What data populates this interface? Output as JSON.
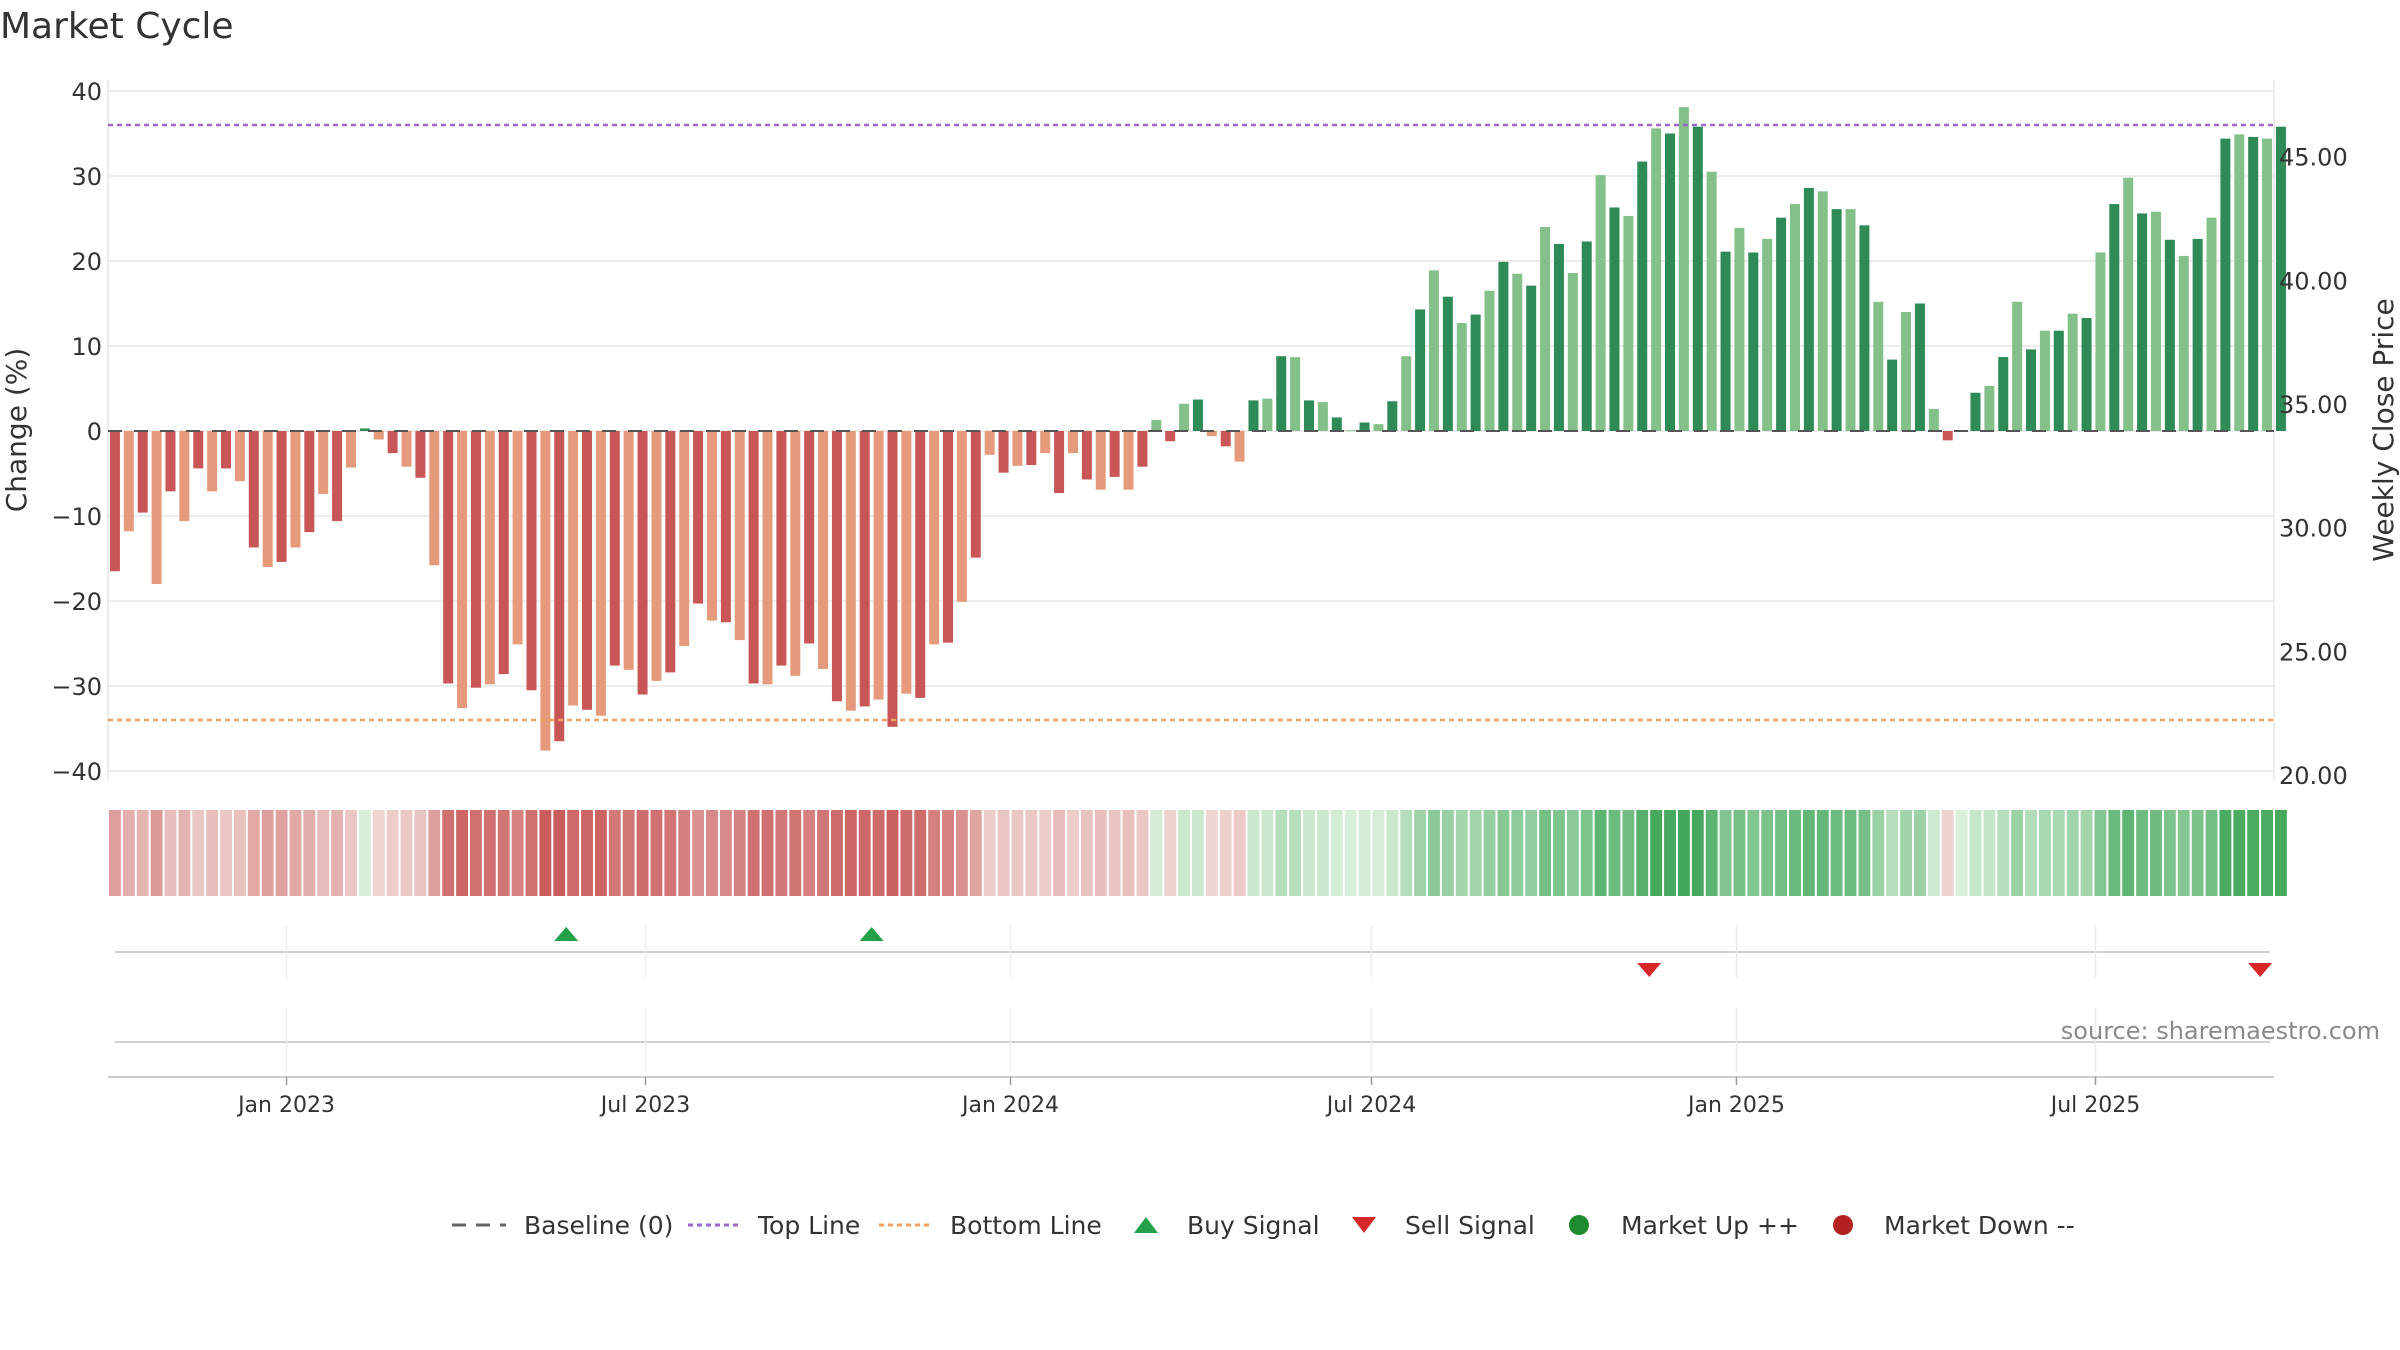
{
  "chart_data": {
    "title": "Market Cycle",
    "type": "bar",
    "ylabel_left": "Change (%)",
    "ylabel_right": "Weekly Close Price",
    "ylim_left": [
      -40,
      40
    ],
    "ylim_right": [
      20,
      47.9
    ],
    "y_ticks_left": [
      40,
      30,
      20,
      10,
      0,
      -10,
      -20,
      -30,
      -40
    ],
    "y_tick_labels_left": [
      "40",
      "30",
      "20",
      "10",
      "0",
      "−10",
      "−20",
      "−30",
      "−40"
    ],
    "y_ticks_right": [
      45,
      40,
      35,
      30,
      25,
      20
    ],
    "y_tick_labels_right": [
      "45.00",
      "40.00",
      "35.00",
      "30.00",
      "25.00",
      "20.00"
    ],
    "x_range": [
      "2022-10-03",
      "2025-09-29"
    ],
    "x_ticks": [
      {
        "date": "2023-01-01",
        "label": "Jan 2023"
      },
      {
        "date": "2023-07-01",
        "label": "Jul 2023"
      },
      {
        "date": "2024-01-01",
        "label": "Jan 2024"
      },
      {
        "date": "2024-07-01",
        "label": "Jul 2024"
      },
      {
        "date": "2025-01-01",
        "label": "Jan 2025"
      },
      {
        "date": "2025-07-01",
        "label": "Jul 2025"
      }
    ],
    "top_line": 36,
    "bottom_line": -34,
    "baseline": 0,
    "series": [
      {
        "name": "Change (%)",
        "start": "2022-10-03",
        "interval_days": 7,
        "values": [
          -16.5,
          -11.8,
          -9.6,
          -18,
          -7.1,
          -10.6,
          -4.4,
          -7.1,
          -4.4,
          -5.9,
          -13.7,
          -16,
          -15.4,
          -13.7,
          -11.9,
          -7.4,
          -10.6,
          -4.3,
          0.3,
          -1,
          -2.6,
          -4.2,
          -5.5,
          -15.8,
          -29.7,
          -32.6,
          -30.2,
          -29.8,
          -28.6,
          -25.1,
          -30.5,
          -37.6,
          -36.5,
          -32.3,
          -32.8,
          -33.5,
          -27.6,
          -28.1,
          -31,
          -29.4,
          -28.4,
          -25.3,
          -20.3,
          -22.3,
          -22.5,
          -24.6,
          -29.7,
          -29.8,
          -27.6,
          -28.8,
          -25,
          -28,
          -31.8,
          -32.9,
          -32.4,
          -31.6,
          -34.8,
          -30.9,
          -31.4,
          -25.1,
          -24.9,
          -20.1,
          -14.9,
          -2.8,
          -4.9,
          -4.1,
          -4,
          -2.6,
          -7.3,
          -2.6,
          -5.7,
          -6.9,
          -5.4,
          -6.9,
          -4.2,
          1.3,
          -1.2,
          3.2,
          3.7,
          -0.6,
          -1.8,
          -3.6,
          3.6,
          3.8,
          8.8,
          8.7,
          3.6,
          3.4,
          1.6,
          0.1,
          1,
          0.8,
          3.5,
          8.8,
          14.3,
          18.9,
          15.8,
          12.7,
          13.7,
          16.5,
          19.9,
          18.5,
          17.1,
          24,
          22,
          18.6,
          22.3,
          30.1,
          26.3,
          25.3,
          31.7,
          35.6,
          35,
          38.1,
          35.8,
          30.5,
          21.1,
          23.9,
          21,
          22.6,
          25.1,
          26.7,
          28.6,
          28.2,
          26.1,
          26.1,
          24.2,
          15.2,
          8.4,
          14,
          15,
          2.6,
          -1.1,
          0,
          4.5,
          5.3,
          8.7,
          15.2,
          9.6,
          11.8,
          11.8,
          13.8,
          13.3,
          21,
          26.7,
          29.8,
          25.6,
          25.8,
          22.5,
          20.6,
          22.6,
          25.1,
          34.4,
          34.9,
          34.6,
          34.4,
          35.8
        ]
      }
    ],
    "colors": {
      "neg_dark": "#c95656",
      "neg_light": "#e59b7b",
      "pos_dark": "#2e8a57",
      "pos_light": "#84c18a",
      "top_line": "#9a6ac9",
      "bottom_line": "#f0a060",
      "buy": "#24a148",
      "sell": "#d62828",
      "market_up": "#1e8a2e",
      "market_down": "#b22222"
    },
    "signals": {
      "buy": [
        "2023-05-22",
        "2023-10-23"
      ],
      "sell": [
        "2024-11-18",
        "2025-09-22"
      ]
    },
    "legend": [
      {
        "key": "baseline",
        "label": "Baseline (0)"
      },
      {
        "key": "top",
        "label": "Top Line"
      },
      {
        "key": "bottom",
        "label": "Bottom Line"
      },
      {
        "key": "buy",
        "label": "Buy Signal"
      },
      {
        "key": "sell",
        "label": "Sell Signal"
      },
      {
        "key": "up",
        "label": "Market Up ++"
      },
      {
        "key": "down",
        "label": "Market Down --"
      }
    ],
    "legend_placement": "bottom",
    "grid": true
  },
  "watermark": "source: sharemaestro.com"
}
